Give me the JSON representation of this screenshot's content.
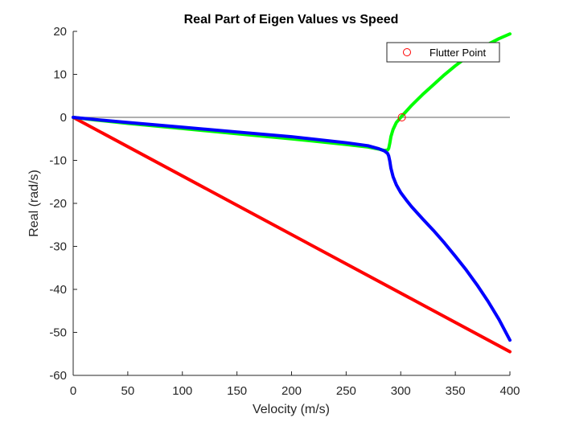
{
  "chart_data": {
    "type": "line",
    "title": "Real Part of Eigen Values vs Speed",
    "xlabel": "Velocity (m/s)",
    "ylabel": "Real (rad/s)",
    "xlim": [
      0,
      400
    ],
    "ylim": [
      -60,
      20
    ],
    "xticks": [
      0,
      50,
      100,
      150,
      200,
      250,
      300,
      350,
      400
    ],
    "yticks": [
      -60,
      -50,
      -40,
      -30,
      -20,
      -10,
      0,
      10,
      20
    ],
    "grid": false,
    "legend_position": "top-right",
    "zero_line": {
      "y": 0,
      "color": "#808080"
    },
    "series": [
      {
        "name": "",
        "color": "#ff0000",
        "x": [
          0,
          400
        ],
        "y": [
          0,
          -54.5
        ]
      },
      {
        "name": "",
        "color": "#00ff00",
        "x": [
          0,
          20,
          50,
          100,
          150,
          200,
          250,
          270,
          280,
          285,
          288,
          289,
          290,
          291,
          293,
          296,
          300,
          305,
          310,
          320,
          330,
          340,
          350,
          360,
          370,
          380,
          390,
          400
        ],
        "y": [
          0,
          -0.6,
          -1.4,
          -2.6,
          -3.8,
          -5.0,
          -6.3,
          -6.9,
          -7.4,
          -7.7,
          -7.6,
          -7.2,
          -6.0,
          -4.5,
          -2.8,
          -1.2,
          0,
          1.4,
          2.8,
          5.3,
          7.6,
          9.9,
          12.0,
          13.9,
          15.6,
          17.0,
          18.3,
          19.4
        ]
      },
      {
        "name": "",
        "color": "#0000ff",
        "x": [
          0,
          20,
          50,
          100,
          150,
          200,
          250,
          270,
          280,
          285,
          288,
          289,
          290,
          291,
          293,
          296,
          300,
          305,
          310,
          320,
          330,
          340,
          350,
          360,
          370,
          380,
          390,
          400
        ],
        "y": [
          0,
          -0.5,
          -1.2,
          -2.3,
          -3.4,
          -4.5,
          -5.9,
          -6.6,
          -7.3,
          -7.8,
          -8.4,
          -9.0,
          -10.2,
          -11.8,
          -13.8,
          -15.7,
          -17.5,
          -19.2,
          -20.8,
          -23.6,
          -26.3,
          -29.2,
          -32.3,
          -35.5,
          -39.0,
          -42.8,
          -47.0,
          -51.8
        ]
      }
    ],
    "markers": [
      {
        "label": "Flutter Point",
        "x": 301,
        "y": 0,
        "shape": "circle-open",
        "color": "#ff0000"
      }
    ]
  }
}
